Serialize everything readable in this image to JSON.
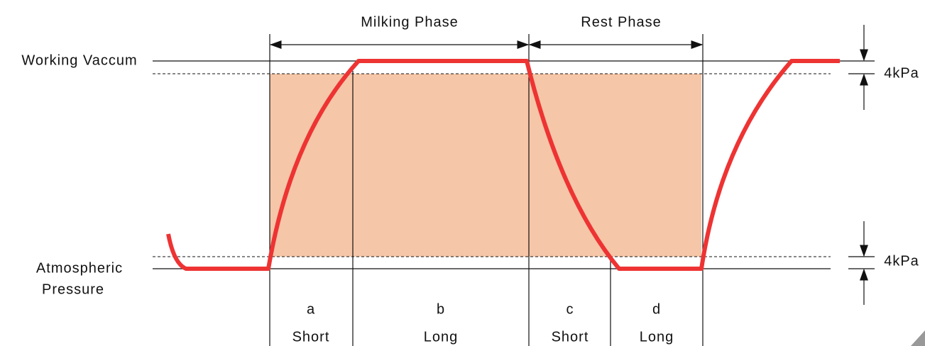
{
  "title_phases": {
    "milking": "Milking Phase",
    "rest": "Rest Phase"
  },
  "levels": {
    "working": "Working Vaccum",
    "atmospheric": [
      "Atmospheric",
      "Pressure"
    ],
    "upper_band": "4kPa",
    "lower_band": "4kPa"
  },
  "segments": [
    {
      "letter": "a",
      "duration": "Short"
    },
    {
      "letter": "b",
      "duration": "Long"
    },
    {
      "letter": "c",
      "duration": "Short"
    },
    {
      "letter": "d",
      "duration": "Long"
    }
  ]
}
